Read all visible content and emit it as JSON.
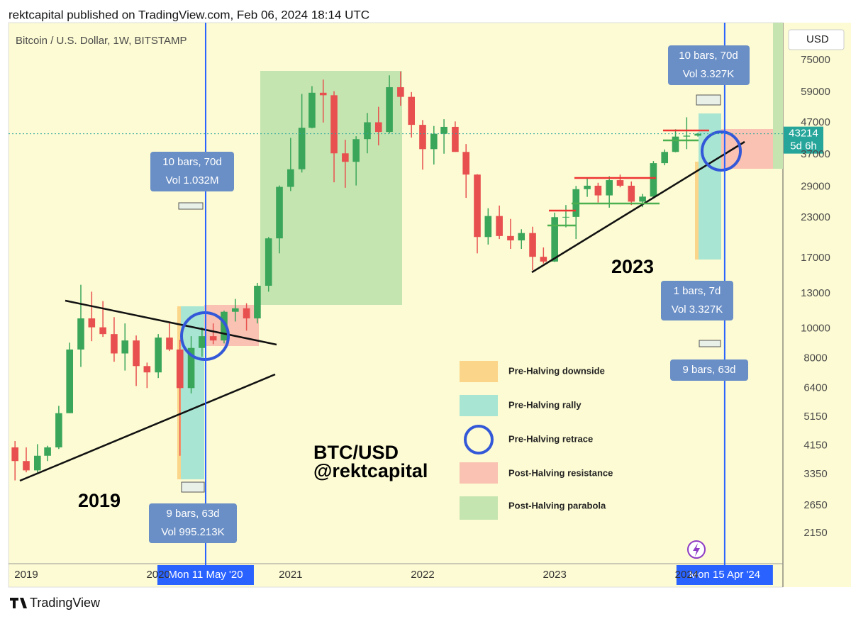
{
  "header": {
    "publisher": "rektcapital published on TradingView.com, Feb 06, 2024 18:14 UTC"
  },
  "chart_data": {
    "type": "candlestick",
    "title": "Bitcoin / U.S. Dollar, 1W, BITSTAMP",
    "currency": "USD",
    "log_scale": true,
    "up_color": "#3aa65a",
    "down_color": "#e8504f",
    "x": [
      "2018-12-01",
      "2019-01-01",
      "2019-02-01",
      "2019-03-01",
      "2019-04-01",
      "2019-05-01",
      "2019-06-01",
      "2019-07-01",
      "2019-08-01",
      "2019-09-01",
      "2019-10-01",
      "2019-11-01",
      "2019-12-01",
      "2020-01-01",
      "2020-02-01",
      "2020-03-01",
      "2020-04-01",
      "2020-05-01",
      "2020-06-01",
      "2020-07-01",
      "2020-08-01",
      "2020-09-01",
      "2020-10-01",
      "2020-11-01",
      "2020-12-01",
      "2021-01-01",
      "2021-02-01",
      "2021-03-01",
      "2021-04-01",
      "2021-05-01",
      "2021-06-01",
      "2021-07-01",
      "2021-08-01",
      "2021-09-01",
      "2021-10-01",
      "2021-11-01",
      "2021-12-01",
      "2022-01-01",
      "2022-02-01",
      "2022-03-01",
      "2022-04-01",
      "2022-05-01",
      "2022-06-01",
      "2022-07-01",
      "2022-08-01",
      "2022-09-01",
      "2022-10-01",
      "2022-11-01",
      "2022-12-01",
      "2023-01-01",
      "2023-02-01",
      "2023-03-01",
      "2023-04-01",
      "2023-05-01",
      "2023-06-01",
      "2023-07-01",
      "2023-08-01",
      "2023-09-01",
      "2023-10-01",
      "2023-11-01",
      "2023-12-01",
      "2024-01-01",
      "2024-02-01"
    ],
    "open": [
      4100,
      3700,
      3450,
      3850,
      4100,
      5300,
      8550,
      10800,
      10100,
      9600,
      8300,
      9150,
      7550,
      7200,
      9350,
      8550,
      6400,
      8650,
      9450,
      9150,
      11350,
      11650,
      10800,
      13800,
      19700,
      29000,
      33100,
      45200,
      58800,
      57700,
      37300,
      35000,
      41500,
      47100,
      43800,
      61300,
      57000,
      46200,
      38500,
      43200,
      45500,
      37700,
      31800,
      19900,
      23300,
      20050,
      19400,
      20500,
      17150,
      16550,
      23100,
      23150,
      28500,
      29250,
      27200,
      30500,
      29250,
      25950,
      26950,
      34650,
      37700,
      42300,
      42600
    ],
    "high": [
      4300,
      4100,
      4200,
      4150,
      5600,
      9000,
      13900,
      13200,
      12300,
      10900,
      10400,
      9500,
      7750,
      9600,
      10500,
      9200,
      9450,
      10100,
      10400,
      11450,
      12500,
      12100,
      14100,
      19900,
      29300,
      41900,
      58300,
      61800,
      64900,
      59500,
      41300,
      42400,
      50500,
      52900,
      67000,
      69000,
      59100,
      47900,
      45800,
      48200,
      47400,
      40000,
      31900,
      24700,
      25200,
      22800,
      21100,
      21500,
      18400,
      23900,
      25300,
      29200,
      31000,
      29900,
      31400,
      31800,
      30200,
      27500,
      35200,
      38400,
      44700,
      48900,
      43500
    ],
    "low": [
      3200,
      3400,
      3400,
      3700,
      4050,
      5300,
      7500,
      9100,
      9400,
      7800,
      7300,
      6500,
      6400,
      6900,
      8450,
      3850,
      6150,
      8100,
      8900,
      8950,
      10550,
      9850,
      10400,
      13200,
      17600,
      28100,
      32300,
      45000,
      47000,
      30000,
      28800,
      29300,
      37300,
      39600,
      43300,
      53300,
      42000,
      33000,
      34300,
      37200,
      37700,
      26700,
      17600,
      18800,
      19600,
      18200,
      18200,
      15500,
      16300,
      16500,
      21400,
      19600,
      26900,
      25800,
      24800,
      28900,
      25300,
      24900,
      26600,
      34100,
      37600,
      38500,
      42300
    ],
    "close": [
      3700,
      3450,
      3850,
      4100,
      5300,
      8550,
      10800,
      10100,
      9600,
      8300,
      9150,
      7550,
      7200,
      9350,
      8550,
      6400,
      8650,
      9450,
      9150,
      11350,
      11650,
      10800,
      13800,
      19700,
      29000,
      33100,
      45200,
      58800,
      57700,
      37300,
      35000,
      41500,
      47100,
      43800,
      61300,
      57000,
      46200,
      38500,
      43200,
      45500,
      37700,
      31800,
      19900,
      23300,
      20050,
      19400,
      20500,
      17150,
      16550,
      23100,
      23150,
      28500,
      29250,
      27200,
      30500,
      29250,
      25950,
      26950,
      34650,
      37700,
      42300,
      42600,
      43214
    ],
    "ylim": [
      1730,
      99500
    ],
    "yticks": [
      2150,
      2650,
      3350,
      4150,
      5150,
      6400,
      8000,
      10000,
      13000,
      17000,
      23000,
      29000,
      37000,
      47000,
      59000,
      75000
    ],
    "xlim": [
      "2018-11-13",
      "2024-09-23"
    ],
    "xticks": [
      {
        "value": "2019-01-01",
        "label": "2019"
      },
      {
        "value": "2020-01-01",
        "label": "2020"
      },
      {
        "value": "2021-01-01",
        "label": "2021"
      },
      {
        "value": "2022-01-01",
        "label": "2022"
      },
      {
        "value": "2023-01-01",
        "label": "2023"
      },
      {
        "value": "2024-01-01",
        "label": "2024"
      }
    ],
    "last_price": 43214,
    "countdown": "5d 6h",
    "crosshairs": [
      {
        "value": "2020-05-11",
        "label": "Mon 11 May '20"
      },
      {
        "value": "2024-04-15",
        "label": "Mon 15 Apr '24"
      }
    ]
  },
  "annotations": {
    "measures": [
      {
        "bars": "10 bars, 70d",
        "volume": "Vol 1.032M"
      },
      {
        "bars": "9 bars, 63d",
        "volume": "Vol 995.213K"
      },
      {
        "bars": "10 bars, 70d",
        "volume": "Vol 3.327K"
      },
      {
        "bars": "1 bars, 7d",
        "volume": "Vol 3.327K"
      },
      {
        "bars": "9 bars, 63d"
      }
    ],
    "labels": [
      "2019",
      "2023",
      "BTC/USD",
      "@rektcapital"
    ]
  },
  "legend": [
    "Pre-Halving downside",
    "Pre-Halving rally",
    "Pre-Halving retrace",
    "Post-Halving resistance",
    "Post-Halving parabola"
  ],
  "footer": {
    "brand": "TradingView"
  }
}
